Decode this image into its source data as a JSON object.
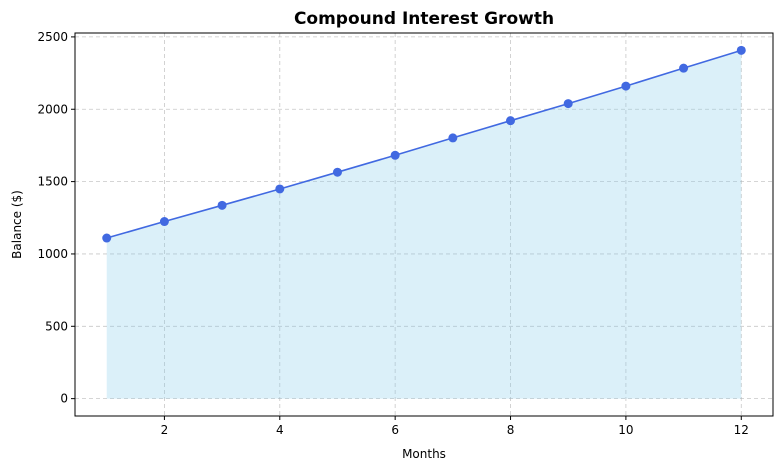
{
  "chart_data": {
    "type": "area",
    "title": "Compound Interest Growth",
    "xlabel": "Months",
    "ylabel": "Balance ($)",
    "x": [
      1,
      2,
      3,
      4,
      5,
      6,
      7,
      8,
      9,
      10,
      11,
      12
    ],
    "series": [
      {
        "values": [
          1110,
          1224,
          1336,
          1449,
          1565,
          1682,
          1802,
          1921,
          2039,
          2160,
          2284,
          2407
        ],
        "line_color": "#4169e1",
        "fill_color": "#87ceeb"
      }
    ],
    "xlim": [
      0.45,
      12.55
    ],
    "ylim": [
      -120,
      2527
    ],
    "xticks": [
      2,
      4,
      6,
      8,
      10,
      12
    ],
    "yticks": [
      0,
      500,
      1000,
      1500,
      2000,
      2500
    ],
    "grid": true,
    "legend": "none"
  }
}
